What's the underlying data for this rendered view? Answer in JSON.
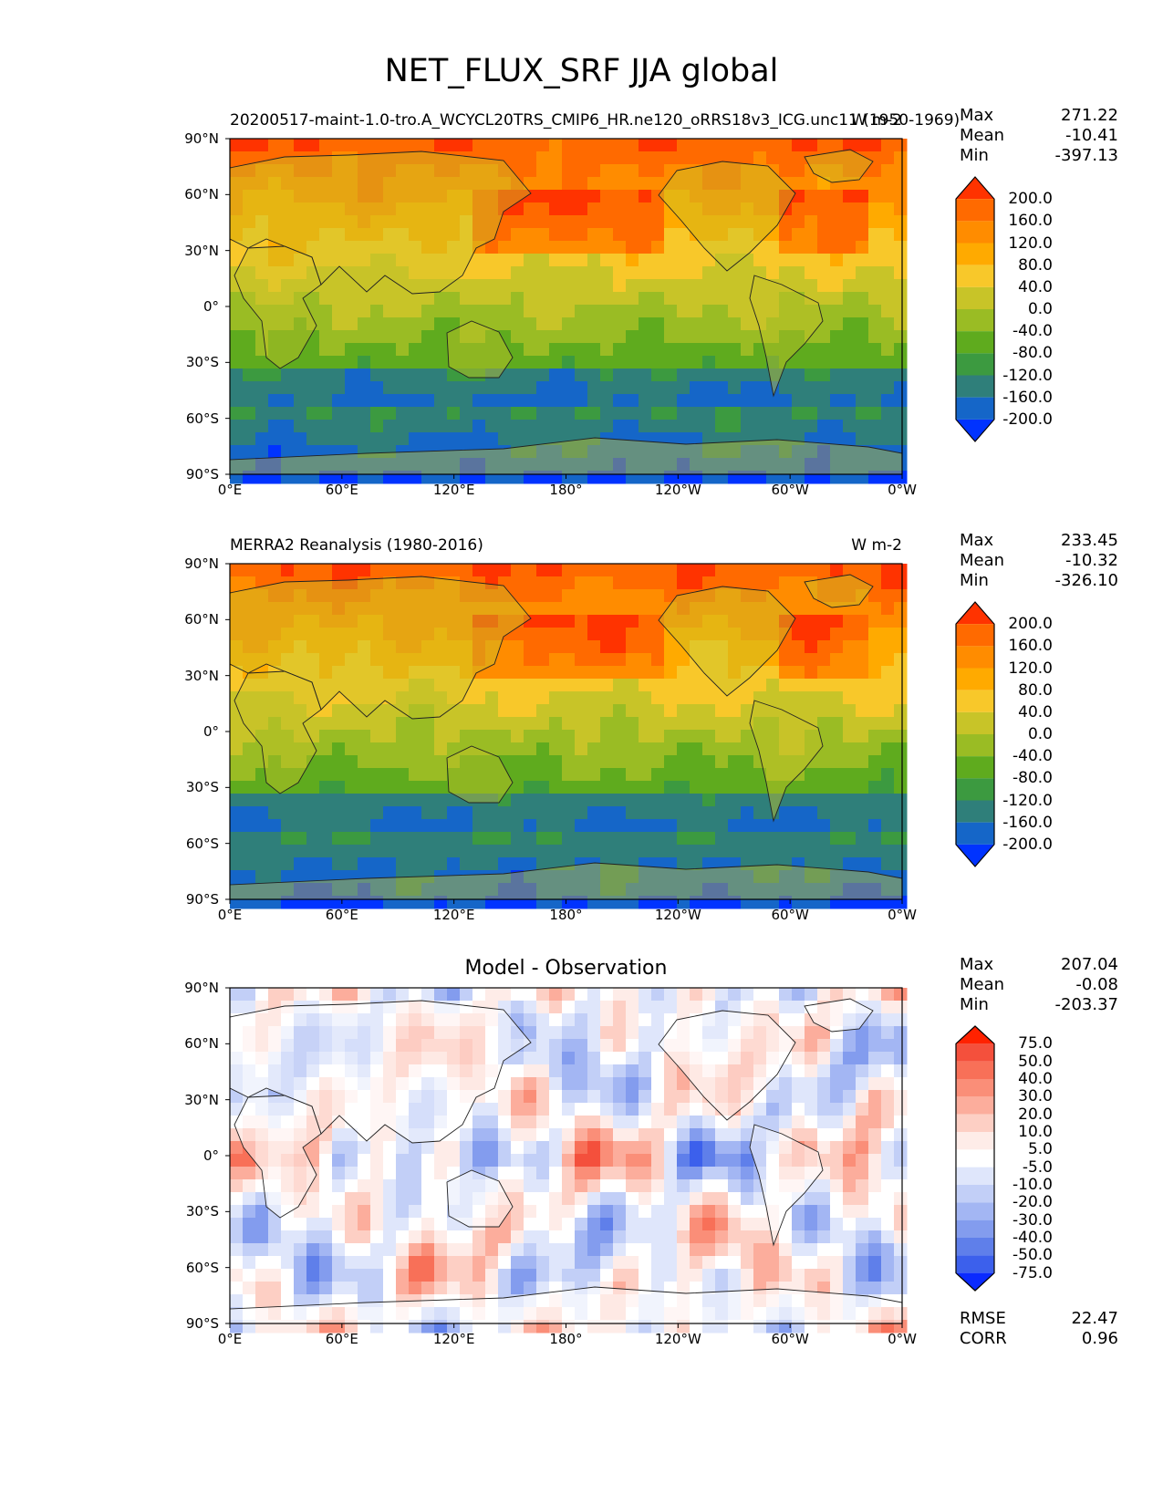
{
  "chart_data": {
    "title": "NET_FLUX_SRF JJA global",
    "x_ticks": [
      "0°E",
      "60°E",
      "120°E",
      "180°",
      "120°W",
      "60°W",
      "0°W"
    ],
    "y_ticks": [
      "90°N",
      "60°N",
      "30°N",
      "0°",
      "30°S",
      "60°S",
      "90°S"
    ],
    "panels": [
      {
        "type": "heatmap",
        "left_title": "20200517-maint-1.0-tro.A_WCYCL20TRS_CMIP6_HR.ne120_oRRS18v3_ICG.unc11 (1950-1969)",
        "right_title": "W m-2",
        "center_title": "",
        "stats": {
          "max_label": "Max",
          "max": "271.22",
          "mean_label": "Mean",
          "mean": "-10.41",
          "min_label": "Min",
          "min": "-397.13"
        },
        "levels": [
          "200.0",
          "160.0",
          "120.0",
          "80.0",
          "40.0",
          "0.0",
          "-40.0",
          "-80.0",
          "-120.0",
          "-160.0",
          "-200.0"
        ],
        "colors": [
          "#ff3300",
          "#ff6a00",
          "#ff8c00",
          "#ffaa00",
          "#f8c82a",
          "#c8c428",
          "#9abc24",
          "#5fab1e",
          "#3c9a40",
          "#2f7f7a",
          "#1566c8",
          "#0033ff"
        ]
      },
      {
        "type": "heatmap",
        "left_title": "MERRA2 Reanalysis (1980-2016)",
        "right_title": "W m-2",
        "center_title": "",
        "stats": {
          "max_label": "Max",
          "max": "233.45",
          "mean_label": "Mean",
          "mean": "-10.32",
          "min_label": "Min",
          "min": "-326.10"
        },
        "levels": [
          "200.0",
          "160.0",
          "120.0",
          "80.0",
          "40.0",
          "0.0",
          "-40.0",
          "-80.0",
          "-120.0",
          "-160.0",
          "-200.0"
        ],
        "colors": [
          "#ff3300",
          "#ff6a00",
          "#ff8c00",
          "#ffaa00",
          "#f8c82a",
          "#c8c428",
          "#9abc24",
          "#5fab1e",
          "#3c9a40",
          "#2f7f7a",
          "#1566c8",
          "#0033ff"
        ]
      },
      {
        "type": "heatmap",
        "left_title": "",
        "right_title": "",
        "center_title": "Model - Observation",
        "stats": {
          "max_label": "Max",
          "max": "207.04",
          "mean_label": "Mean",
          "mean": "-0.08",
          "min_label": "Min",
          "min": "-203.37"
        },
        "levels": [
          "75.0",
          "50.0",
          "40.0",
          "30.0",
          "20.0",
          "10.0",
          "5.0",
          "-5.0",
          "-10.0",
          "-20.0",
          "-30.0",
          "-40.0",
          "-50.0",
          "-75.0"
        ],
        "colors": [
          "#ff2200",
          "#f4503c",
          "#f87058",
          "#fa8e78",
          "#fcad9c",
          "#fdcfc4",
          "#feece8",
          "#ffffff",
          "#dfe6fb",
          "#c2cff7",
          "#a3b6f3",
          "#839cee",
          "#5f7fea",
          "#3c60ec",
          "#0a2aff"
        ],
        "error_stats": {
          "rmse_label": "RMSE",
          "rmse": "22.47",
          "corr_label": "CORR",
          "corr": "0.96"
        }
      }
    ]
  }
}
